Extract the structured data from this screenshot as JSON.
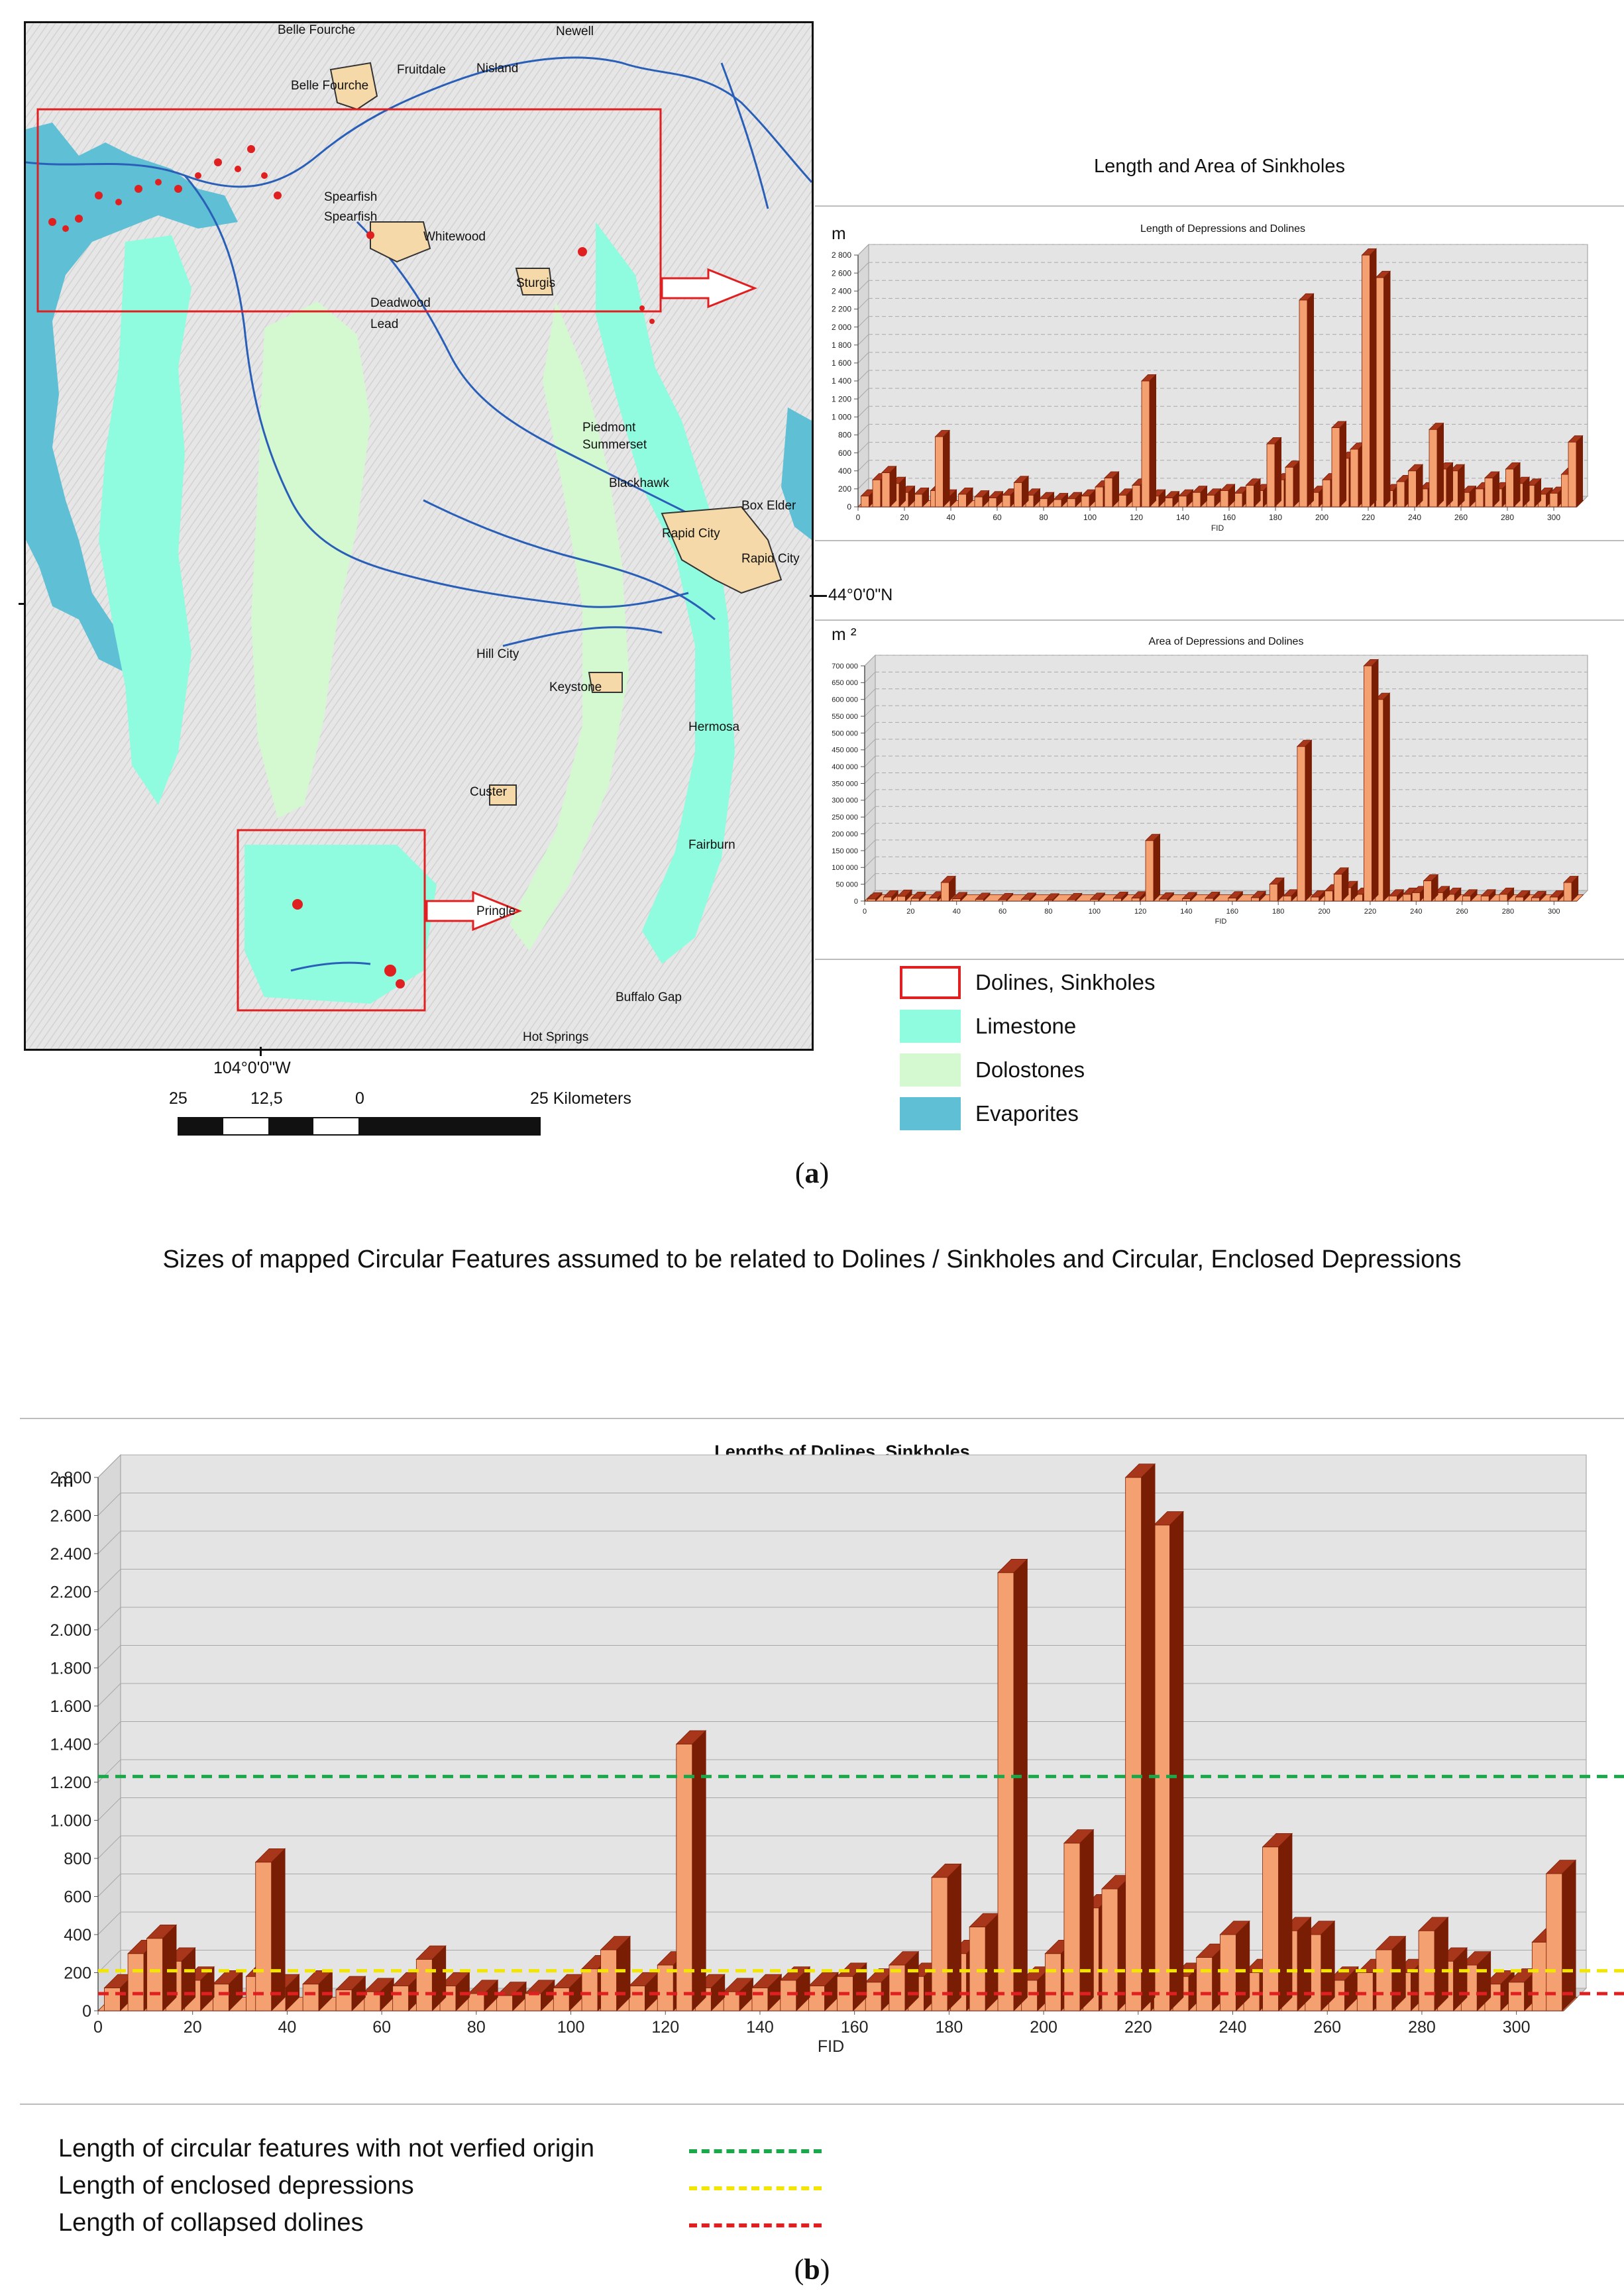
{
  "map": {
    "places": [
      {
        "id": "belle-fourche-top",
        "text": "Belle Fourche"
      },
      {
        "id": "newell",
        "text": "Newell"
      },
      {
        "id": "fruitdale",
        "text": "Fruitdale"
      },
      {
        "id": "nisland",
        "text": "Nisland"
      },
      {
        "id": "belle-fourche",
        "text": "Belle Fourche"
      },
      {
        "id": "spearfish-1",
        "text": "Spearfish"
      },
      {
        "id": "spearfish-2",
        "text": "Spearfish"
      },
      {
        "id": "whitewood",
        "text": "Whitewood"
      },
      {
        "id": "sturgis",
        "text": "Sturgis"
      },
      {
        "id": "deadwood",
        "text": "Deadwood"
      },
      {
        "id": "lead",
        "text": "Lead"
      },
      {
        "id": "piedmont",
        "text": "Piedmont"
      },
      {
        "id": "summerset",
        "text": "Summerset"
      },
      {
        "id": "blackhawk",
        "text": "Blackhawk"
      },
      {
        "id": "box-elder",
        "text": "Box Elder"
      },
      {
        "id": "rapid-city-1",
        "text": "Rapid City"
      },
      {
        "id": "rapid-city-2",
        "text": "Rapid City"
      },
      {
        "id": "hill-city",
        "text": "Hill City"
      },
      {
        "id": "keystone",
        "text": "Keystone"
      },
      {
        "id": "hermosa",
        "text": "Hermosa"
      },
      {
        "id": "custer",
        "text": "Custer"
      },
      {
        "id": "fairburn",
        "text": "Fairburn"
      },
      {
        "id": "pringle",
        "text": "Pringle"
      },
      {
        "id": "buffalo-gap",
        "text": "Buffalo Gap"
      },
      {
        "id": "hot-springs",
        "text": "Hot Springs"
      }
    ],
    "lat_label": "44°0'0\"N",
    "lon_label": "104°0'0\"W",
    "scale": {
      "labels": [
        "25",
        "12,5",
        "0",
        "25 Kilometers"
      ]
    }
  },
  "legend": {
    "items": [
      {
        "label": "Dolines, Sinkholes",
        "color": "#ffffff",
        "border": "#e02020"
      },
      {
        "label": "Limestone",
        "color": "#8ffce0",
        "border": "#8ffce0"
      },
      {
        "label": "Dolostones",
        "color": "#d4f9d0",
        "border": "#d4f9d0"
      },
      {
        "label": "Evaporites",
        "color": "#5fbfd5",
        "border": "#5fbfd5"
      }
    ]
  },
  "panel_a": {
    "title": "Length and Area of Sinkholes",
    "caption_letter": "a"
  },
  "panel_b": {
    "subtitle": "Sizes of mapped Circular Features assumed to be related to Dolines / Sinkholes and Circular, Enclosed Depressions",
    "caption_letter": "b",
    "legend": [
      {
        "label": "Length of circular features with not verfied origin",
        "color": "#1aa84a"
      },
      {
        "label": "Length of enclosed depressions",
        "color": "#f2e600"
      },
      {
        "label": "Length of collapsed dolines",
        "color": "#e02020"
      }
    ]
  },
  "colors": {
    "bar_dark": "#7a1d05",
    "bar_light": "#f4a070",
    "plot_bg": "#e4e4e4"
  },
  "chart_data": [
    {
      "id": "a-length",
      "type": "bar",
      "title": "Length of  Depressions and Dolines",
      "unit": "m",
      "xlabel": "FID",
      "ylim": [
        0,
        2800
      ],
      "yticks": [
        0,
        200,
        400,
        600,
        800,
        1000,
        1200,
        1400,
        1600,
        1800,
        2000,
        2200,
        2400,
        2600,
        2800
      ],
      "ytick_labels": [
        "0",
        "200",
        "400",
        "600",
        "800",
        "1 000",
        "1 200",
        "1 400",
        "1 600",
        "1 800",
        "2 000",
        "2 200",
        "2 400",
        "2 600",
        "2 800"
      ],
      "xlim": [
        0,
        310
      ],
      "xticks": [
        0,
        20,
        40,
        60,
        80,
        100,
        120,
        140,
        160,
        180,
        200,
        220,
        240,
        260,
        280,
        300
      ],
      "grid": true,
      "bars": [
        [
          3,
          120
        ],
        [
          8,
          300
        ],
        [
          12,
          380
        ],
        [
          16,
          260
        ],
        [
          20,
          160
        ],
        [
          26,
          140
        ],
        [
          33,
          180
        ],
        [
          35,
          780
        ],
        [
          38,
          120
        ],
        [
          45,
          140
        ],
        [
          52,
          110
        ],
        [
          58,
          100
        ],
        [
          64,
          130
        ],
        [
          69,
          270
        ],
        [
          74,
          130
        ],
        [
          80,
          90
        ],
        [
          86,
          80
        ],
        [
          92,
          90
        ],
        [
          98,
          120
        ],
        [
          104,
          220
        ],
        [
          108,
          320
        ],
        [
          114,
          130
        ],
        [
          120,
          240
        ],
        [
          124,
          1400
        ],
        [
          128,
          120
        ],
        [
          134,
          100
        ],
        [
          140,
          120
        ],
        [
          146,
          160
        ],
        [
          152,
          130
        ],
        [
          158,
          180
        ],
        [
          164,
          150
        ],
        [
          169,
          240
        ],
        [
          173,
          180
        ],
        [
          178,
          700
        ],
        [
          182,
          300
        ],
        [
          186,
          440
        ],
        [
          192,
          2300
        ],
        [
          197,
          160
        ],
        [
          202,
          300
        ],
        [
          206,
          880
        ],
        [
          210,
          540
        ],
        [
          214,
          640
        ],
        [
          217,
          260
        ],
        [
          219,
          2800
        ],
        [
          221,
          1300
        ],
        [
          225,
          2550
        ],
        [
          229,
          180
        ],
        [
          234,
          280
        ],
        [
          239,
          400
        ],
        [
          244,
          200
        ],
        [
          248,
          860
        ],
        [
          252,
          420
        ],
        [
          257,
          400
        ],
        [
          262,
          160
        ],
        [
          268,
          200
        ],
        [
          272,
          320
        ],
        [
          276,
          200
        ],
        [
          281,
          420
        ],
        [
          285,
          260
        ],
        [
          290,
          240
        ],
        [
          295,
          140
        ],
        [
          300,
          150
        ],
        [
          305,
          360
        ],
        [
          308,
          720
        ]
      ]
    },
    {
      "id": "a-area",
      "type": "bar",
      "title": "Area of Depressions and Dolines",
      "unit": "m ²",
      "xlabel": "FID",
      "ylim": [
        0,
        700000
      ],
      "yticks": [
        0,
        50000,
        100000,
        150000,
        200000,
        250000,
        300000,
        350000,
        400000,
        450000,
        500000,
        550000,
        600000,
        650000,
        700000
      ],
      "ytick_labels": [
        "0",
        "50 000",
        "100 000",
        "150 000",
        "200 000",
        "250 000",
        "300 000",
        "350 000",
        "400 000",
        "450 000",
        "500 000",
        "550 000",
        "600 000",
        "650 000",
        "700 000"
      ],
      "xlim": [
        0,
        310
      ],
      "xticks": [
        0,
        20,
        40,
        60,
        80,
        100,
        120,
        140,
        160,
        180,
        200,
        220,
        240,
        260,
        280,
        300
      ],
      "grid": true,
      "bars": [
        [
          3,
          6000
        ],
        [
          10,
          12000
        ],
        [
          16,
          14000
        ],
        [
          22,
          8000
        ],
        [
          30,
          9000
        ],
        [
          35,
          55000
        ],
        [
          40,
          7000
        ],
        [
          50,
          5000
        ],
        [
          60,
          4000
        ],
        [
          70,
          5000
        ],
        [
          80,
          3000
        ],
        [
          90,
          4000
        ],
        [
          100,
          5000
        ],
        [
          110,
          8000
        ],
        [
          118,
          9000
        ],
        [
          124,
          180000
        ],
        [
          130,
          6000
        ],
        [
          140,
          7000
        ],
        [
          150,
          8000
        ],
        [
          160,
          9000
        ],
        [
          170,
          10000
        ],
        [
          178,
          50000
        ],
        [
          184,
          15000
        ],
        [
          190,
          460000
        ],
        [
          196,
          12000
        ],
        [
          202,
          30000
        ],
        [
          206,
          80000
        ],
        [
          210,
          40000
        ],
        [
          215,
          20000
        ],
        [
          219,
          700000
        ],
        [
          221,
          120000
        ],
        [
          224,
          600000
        ],
        [
          230,
          15000
        ],
        [
          236,
          20000
        ],
        [
          240,
          25000
        ],
        [
          245,
          60000
        ],
        [
          250,
          25000
        ],
        [
          255,
          20000
        ],
        [
          262,
          15000
        ],
        [
          270,
          15000
        ],
        [
          278,
          20000
        ],
        [
          285,
          12000
        ],
        [
          292,
          10000
        ],
        [
          300,
          12000
        ],
        [
          306,
          55000
        ]
      ]
    },
    {
      "id": "b-length",
      "type": "bar",
      "title": "Lengths of Dolines, Sinkholes",
      "unit": "m",
      "xlabel": "FID",
      "ylim": [
        0,
        2800
      ],
      "yticks": [
        0,
        200,
        400,
        600,
        800,
        1000,
        1200,
        1400,
        1600,
        1800,
        2000,
        2200,
        2400,
        2600,
        2800
      ],
      "ytick_labels": [
        "0",
        "200",
        "400",
        "600",
        "800",
        "1.000",
        "1.200",
        "1.400",
        "1.600",
        "1.800",
        "2.000",
        "2.200",
        "2.400",
        "2.600",
        "2.800"
      ],
      "xlim": [
        0,
        310
      ],
      "xticks": [
        0,
        20,
        40,
        60,
        80,
        100,
        120,
        140,
        160,
        180,
        200,
        220,
        240,
        260,
        280,
        300
      ],
      "grid": true,
      "reference_lines": [
        {
          "value": 1230,
          "color": "#1aa84a"
        },
        {
          "value": 210,
          "color": "#f2e600"
        },
        {
          "value": 90,
          "color": "#e02020"
        }
      ],
      "bars": [
        [
          3,
          120
        ],
        [
          8,
          300
        ],
        [
          12,
          380
        ],
        [
          16,
          260
        ],
        [
          20,
          160
        ],
        [
          26,
          140
        ],
        [
          33,
          180
        ],
        [
          35,
          780
        ],
        [
          38,
          120
        ],
        [
          45,
          140
        ],
        [
          52,
          110
        ],
        [
          58,
          100
        ],
        [
          64,
          130
        ],
        [
          69,
          270
        ],
        [
          74,
          130
        ],
        [
          80,
          90
        ],
        [
          86,
          80
        ],
        [
          92,
          90
        ],
        [
          98,
          120
        ],
        [
          104,
          220
        ],
        [
          108,
          320
        ],
        [
          114,
          130
        ],
        [
          120,
          240
        ],
        [
          124,
          1400
        ],
        [
          128,
          120
        ],
        [
          134,
          100
        ],
        [
          140,
          120
        ],
        [
          146,
          160
        ],
        [
          152,
          130
        ],
        [
          158,
          180
        ],
        [
          164,
          150
        ],
        [
          169,
          240
        ],
        [
          173,
          180
        ],
        [
          178,
          700
        ],
        [
          182,
          300
        ],
        [
          186,
          440
        ],
        [
          192,
          2300
        ],
        [
          197,
          160
        ],
        [
          202,
          300
        ],
        [
          206,
          880
        ],
        [
          210,
          540
        ],
        [
          214,
          640
        ],
        [
          217,
          260
        ],
        [
          219,
          2800
        ],
        [
          221,
          1300
        ],
        [
          225,
          2550
        ],
        [
          229,
          180
        ],
        [
          234,
          280
        ],
        [
          239,
          400
        ],
        [
          244,
          200
        ],
        [
          248,
          860
        ],
        [
          252,
          420
        ],
        [
          257,
          400
        ],
        [
          262,
          160
        ],
        [
          268,
          200
        ],
        [
          272,
          320
        ],
        [
          276,
          200
        ],
        [
          281,
          420
        ],
        [
          285,
          260
        ],
        [
          290,
          240
        ],
        [
          295,
          140
        ],
        [
          300,
          150
        ],
        [
          305,
          360
        ],
        [
          308,
          720
        ]
      ]
    }
  ]
}
